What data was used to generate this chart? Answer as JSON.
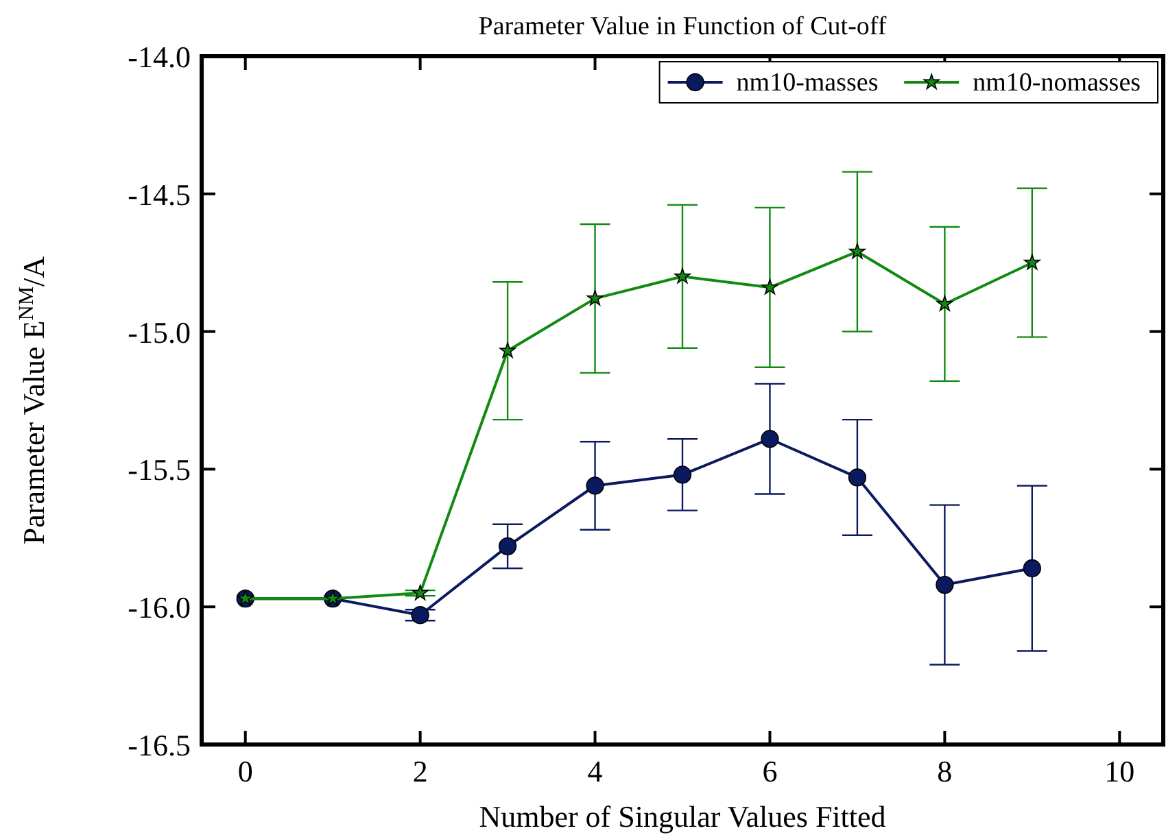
{
  "chart_data": {
    "type": "line",
    "title": "Parameter Value in Function of Cut-off",
    "xlabel": "Number of Singular Values Fitted",
    "ylabel": "Parameter Value E$^{NM}$/A",
    "x": [
      0,
      1,
      2,
      3,
      4,
      5,
      6,
      7,
      8,
      9
    ],
    "series": [
      {
        "name": "nm10-masses",
        "color": "#0b1a5e",
        "marker": "circle",
        "values": [
          -15.97,
          -15.97,
          -16.03,
          -15.78,
          -15.56,
          -15.52,
          -15.39,
          -15.53,
          -15.92,
          -15.86
        ],
        "errors": [
          null,
          null,
          0.02,
          0.08,
          0.16,
          0.13,
          0.2,
          0.21,
          0.29,
          0.3
        ]
      },
      {
        "name": "nm10-nomasses",
        "color": "#128a12",
        "marker": "star",
        "values": [
          -15.97,
          -15.97,
          -15.95,
          -15.07,
          -14.88,
          -14.8,
          -14.84,
          -14.71,
          -14.9,
          -14.75
        ],
        "errors": [
          null,
          null,
          0.01,
          0.25,
          0.27,
          0.26,
          0.29,
          0.29,
          0.28,
          0.27
        ]
      }
    ],
    "xlim": [
      -0.5,
      10.5
    ],
    "xticks": [
      0,
      2,
      4,
      6,
      8,
      10
    ],
    "ylim": [
      -16.5,
      -14.0
    ],
    "yticks": [
      {
        "value": -16.5,
        "label": "-16.5"
      },
      {
        "value": -16.0,
        "label": "-16.0"
      },
      {
        "value": -15.5,
        "label": "-15.5"
      },
      {
        "value": -15.0,
        "label": "-15.0"
      },
      {
        "value": -14.5,
        "label": "-14.5"
      },
      {
        "value": -14.0,
        "label": "-14.0"
      }
    ],
    "grid": false,
    "legend": "top right",
    "line_style": "solid"
  }
}
